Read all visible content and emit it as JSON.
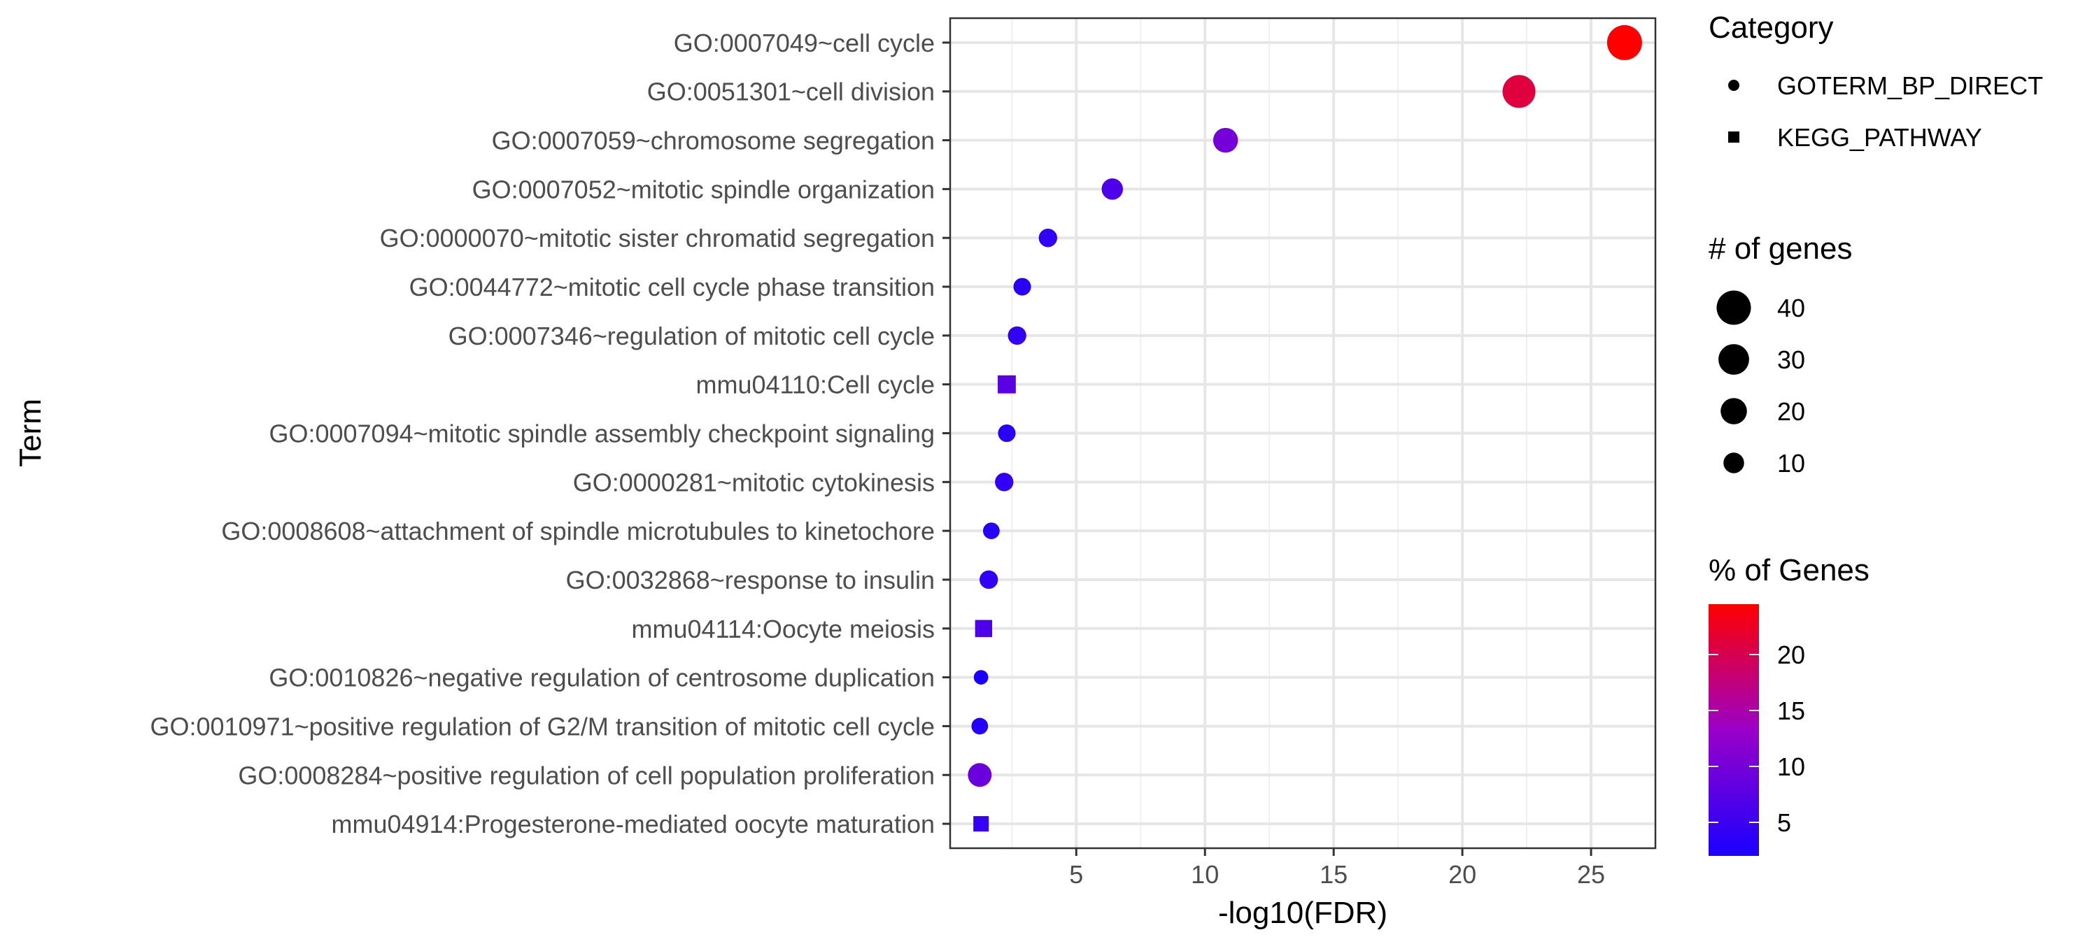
{
  "chart_data": {
    "type": "scatter",
    "xlabel": "-log10(FDR)",
    "ylabel": "Term",
    "xlim": [
      0.1,
      27.5
    ],
    "x_ticks": [
      5,
      10,
      15,
      20,
      25
    ],
    "grid": true,
    "legend_position": "right",
    "points": [
      {
        "term": "GO:0007049~cell cycle",
        "category": "GOTERM_BP_DIRECT",
        "x": 26.3,
        "count": 42,
        "percent": 24.5
      },
      {
        "term": "GO:0051301~cell division",
        "category": "GOTERM_BP_DIRECT",
        "x": 22.2,
        "count": 36,
        "percent": 21.0
      },
      {
        "term": "GO:0007059~chromosome segregation",
        "category": "GOTERM_BP_DIRECT",
        "x": 10.8,
        "count": 17,
        "percent": 10.0
      },
      {
        "term": "GO:0007052~mitotic spindle organization",
        "category": "GOTERM_BP_DIRECT",
        "x": 6.4,
        "count": 11,
        "percent": 6.5
      },
      {
        "term": "GO:0000070~mitotic sister chromatid segregation",
        "category": "GOTERM_BP_DIRECT",
        "x": 3.9,
        "count": 7,
        "percent": 4.0
      },
      {
        "term": "GO:0044772~mitotic cell cycle phase transition",
        "category": "GOTERM_BP_DIRECT",
        "x": 2.9,
        "count": 6,
        "percent": 3.5
      },
      {
        "term": "GO:0007346~regulation of mitotic cell cycle",
        "category": "GOTERM_BP_DIRECT",
        "x": 2.7,
        "count": 7,
        "percent": 4.0
      },
      {
        "term": "mmu04110:Cell cycle",
        "category": "KEGG_PATHWAY",
        "x": 2.3,
        "count": 13,
        "percent": 7.5
      },
      {
        "term": "GO:0007094~mitotic spindle assembly checkpoint signaling",
        "category": "GOTERM_BP_DIRECT",
        "x": 2.3,
        "count": 6,
        "percent": 3.5
      },
      {
        "term": "GO:0000281~mitotic cytokinesis",
        "category": "GOTERM_BP_DIRECT",
        "x": 2.2,
        "count": 7,
        "percent": 4.0
      },
      {
        "term": "GO:0008608~attachment of spindle microtubules to kinetochore",
        "category": "GOTERM_BP_DIRECT",
        "x": 1.7,
        "count": 5,
        "percent": 3.0
      },
      {
        "term": "GO:0032868~response to insulin",
        "category": "GOTERM_BP_DIRECT",
        "x": 1.6,
        "count": 7,
        "percent": 4.0
      },
      {
        "term": "mmu04114:Oocyte meiosis",
        "category": "KEGG_PATHWAY",
        "x": 1.4,
        "count": 11,
        "percent": 6.5
      },
      {
        "term": "GO:0010826~negative regulation of centrosome duplication",
        "category": "GOTERM_BP_DIRECT",
        "x": 1.3,
        "count": 3,
        "percent": 1.8
      },
      {
        "term": "GO:0010971~positive regulation of G2/M transition of mitotic cell cycle",
        "category": "GOTERM_BP_DIRECT",
        "x": 1.25,
        "count": 5,
        "percent": 3.0
      },
      {
        "term": "GO:0008284~positive regulation of cell population proliferation",
        "category": "GOTERM_BP_DIRECT",
        "x": 1.25,
        "count": 15,
        "percent": 9.0
      },
      {
        "term": "mmu04914:Progesterone-mediated oocyte maturation",
        "category": "KEGG_PATHWAY",
        "x": 1.3,
        "count": 8,
        "percent": 4.5
      }
    ],
    "legend_category": {
      "title": "Category",
      "items": [
        {
          "label": "GOTERM_BP_DIRECT",
          "shape": "circle"
        },
        {
          "label": "KEGG_PATHWAY",
          "shape": "square"
        }
      ]
    },
    "legend_size": {
      "title": "# of genes",
      "items": [
        40,
        30,
        20,
        10
      ]
    },
    "legend_color": {
      "title": "% of Genes",
      "ticks": [
        20,
        15,
        10,
        5
      ],
      "range": [
        2,
        24.5
      ],
      "low_color": "#1a00ff",
      "high_color": "#ff0000"
    }
  }
}
